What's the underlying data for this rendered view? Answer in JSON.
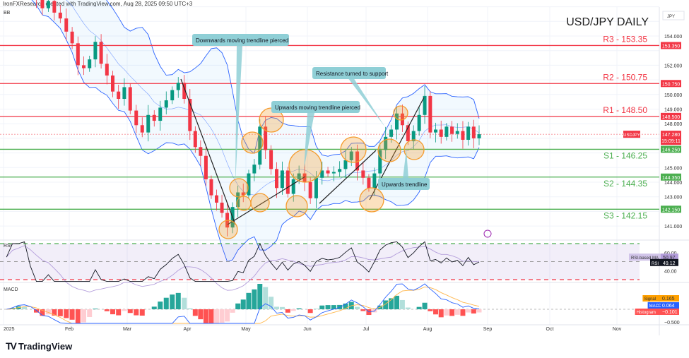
{
  "header": {
    "credit": "IronFXResearch created with TradingView.com, Aug 28, 2025 09:50 UTC+3"
  },
  "brand": {
    "logo_text": "TradingView"
  },
  "chart_data": {
    "type": "candlestick",
    "title": "USD/JPY DAILY",
    "symbol": "USDJPY",
    "currency_label": "JPY",
    "indicator_label_main": "BB",
    "last_price": "147.280",
    "countdown": "15:09:11",
    "closes_by_month": {
      "Jan": [
        157.2,
        157.6,
        158.0,
        157.8,
        157.3,
        156.6,
        155.9,
        156.4,
        155.6,
        155.2,
        154.3
      ],
      "Feb": [
        153.5,
        152.0,
        151.8,
        152.4,
        153.6,
        152.1,
        151.3,
        150.2,
        149.7,
        150.5
      ],
      "Mar": [
        148.9,
        147.9,
        147.4,
        148.6,
        148.2,
        149.1,
        149.6,
        150.3,
        150.8,
        149.7
      ],
      "Apr": [
        147.5,
        146.4,
        145.8,
        144.2,
        143.1,
        142.6,
        141.9,
        140.9,
        142.3,
        143.3,
        143.1
      ],
      "May": [
        144.6,
        145.2,
        147.8,
        146.2,
        144.9,
        143.6,
        144.8,
        143.2,
        144.2,
        144.6,
        144.0
      ],
      "Jun": [
        142.9,
        144.3,
        144.8,
        144.6,
        144.7,
        144.9,
        145.5,
        146.1,
        144.8,
        144.3
      ],
      "Jul": [
        143.6,
        144.6,
        146.2,
        147.1,
        147.6,
        148.7,
        147.9,
        146.8,
        147.5,
        148.6,
        149.9
      ],
      "Aug": [
        147.4,
        147.6,
        147.1,
        147.8,
        147.3,
        147.5,
        146.9,
        147.8,
        147.0,
        147.28
      ]
    },
    "price_axis": {
      "ticks": [
        "154.000",
        "152.000",
        "150.000",
        "149.000",
        "148.000",
        "145.000",
        "144.000",
        "143.000",
        "141.000"
      ],
      "range": [
        140.5,
        156.5
      ]
    },
    "time_axis": {
      "ticks": [
        "2025",
        "Feb",
        "Mar",
        "Apr",
        "May",
        "Jun",
        "Jul",
        "Aug",
        "Sep",
        "Oct",
        "Nov"
      ]
    },
    "levels": [
      {
        "label": "R3 - 153.35",
        "value": 153.35,
        "tag": "153.350",
        "color": "#f23645"
      },
      {
        "label": "R2 - 150.75",
        "value": 150.75,
        "tag": "150.750",
        "color": "#f23645"
      },
      {
        "label": "R1 - 148.50",
        "value": 148.5,
        "tag": "148.500",
        "color": "#f23645"
      },
      {
        "label": "S1 - 146.25",
        "value": 146.25,
        "tag": "146.250",
        "color": "#4caf50"
      },
      {
        "label": "S2 - 144.35",
        "value": 144.35,
        "tag": "144.350",
        "color": "#4caf50"
      },
      {
        "label": "S3 - 142.15",
        "value": 142.15,
        "tag": "142.150",
        "color": "#4caf50"
      }
    ],
    "annotations": [
      "Downwards moving trendline  pierced",
      "Resistance turned to support",
      "Upwards moving trendline pierced",
      "Upwards trendline"
    ],
    "rsi": {
      "label": "RSI",
      "value": "49.12",
      "ma_label": "RSI-based MA",
      "ma_value": "50.97",
      "ticks": [
        "60.00",
        "40.00"
      ],
      "upper": 70,
      "lower": 30
    },
    "macd": {
      "label": "MACD",
      "signal_label": "Signal",
      "signal_value": "0.165",
      "macd_label": "MACD",
      "macd_value": "0.064",
      "hist_label": "Histogram",
      "hist_value": "−0.101",
      "ticks": [
        "−0.500"
      ]
    },
    "colors": {
      "up": "#089981",
      "down": "#f23645",
      "bands": "#2962ff",
      "circle": "#f59b2c",
      "callout": "#8fcfd6",
      "rsi_line": "#131722",
      "rsi_ma": "#b39ddb",
      "signal": "#ffb74d",
      "macd": "#2962ff"
    }
  }
}
